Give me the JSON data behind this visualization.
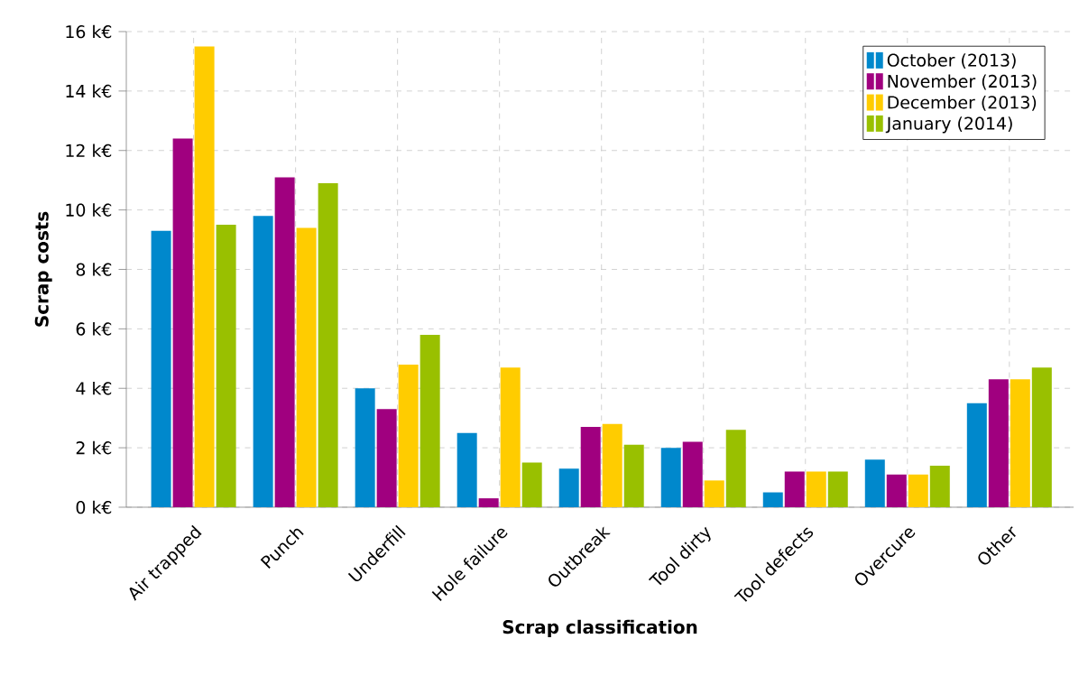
{
  "chart_data": {
    "type": "bar",
    "xlabel": "Scrap classification",
    "ylabel": "Scrap costs",
    "categories": [
      "Air trapped",
      "Punch",
      "Underfill",
      "Hole failure",
      "Outbreak",
      "Tool dirty",
      "Tool defects",
      "Overcure",
      "Other"
    ],
    "series": [
      {
        "name": "October (2013)",
        "color": "#0088cc",
        "values": [
          9.3,
          9.8,
          4.0,
          2.5,
          1.3,
          2.0,
          0.5,
          1.6,
          3.5
        ]
      },
      {
        "name": "November (2013)",
        "color": "#a0007f",
        "values": [
          12.4,
          11.1,
          3.3,
          0.3,
          2.7,
          2.2,
          1.2,
          1.1,
          4.3
        ]
      },
      {
        "name": "December (2013)",
        "color": "#ffcc00",
        "values": [
          15.5,
          9.4,
          4.8,
          4.7,
          2.8,
          0.9,
          1.2,
          1.1,
          4.3
        ]
      },
      {
        "name": "January (2014)",
        "color": "#99c000",
        "values": [
          9.5,
          10.9,
          5.8,
          1.5,
          2.1,
          2.6,
          1.2,
          1.4,
          4.7
        ]
      }
    ],
    "ylim": [
      0,
      16
    ],
    "yticks": [
      {
        "value": 0,
        "label": "0 k€"
      },
      {
        "value": 2,
        "label": "2 k€"
      },
      {
        "value": 4,
        "label": "4 k€"
      },
      {
        "value": 6,
        "label": "6 k€"
      },
      {
        "value": 8,
        "label": "8 k€"
      },
      {
        "value": 10,
        "label": "10 k€"
      },
      {
        "value": 12,
        "label": "12 k€"
      },
      {
        "value": 14,
        "label": "14 k€"
      },
      {
        "value": 16,
        "label": "16 k€"
      }
    ],
    "grid": true,
    "legend": "top right"
  }
}
